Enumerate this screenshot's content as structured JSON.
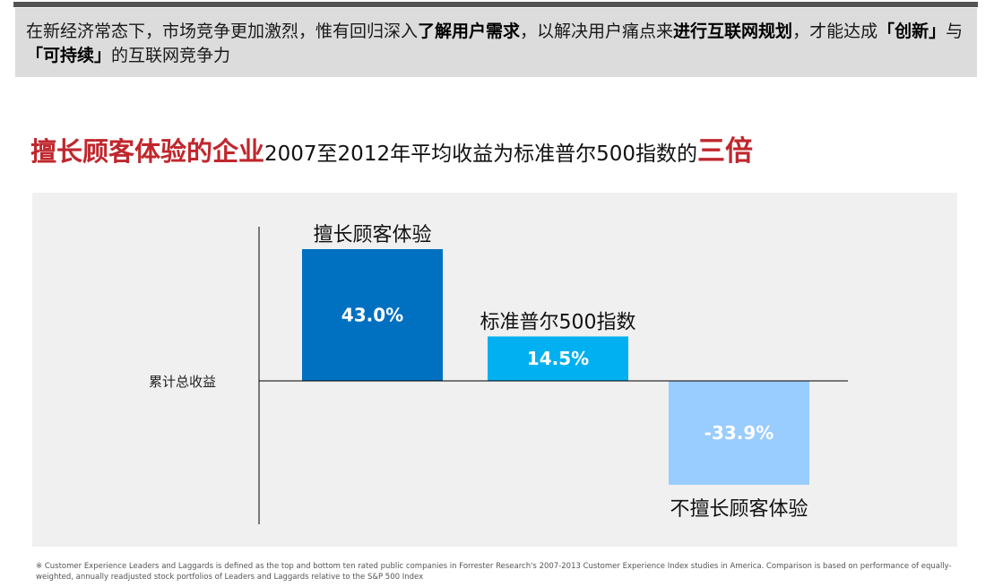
{
  "banner": {
    "seg1": "在新经济常态下，市场竞争更加激烈，惟有回归深入",
    "bold1": "了解用户需求",
    "seg2": "，以解决用户痛点来",
    "bold2": "进行互联网规划",
    "seg3": "，才能达成",
    "bold3": "「创新」",
    "seg4": "与",
    "bold4": "「可持续」",
    "seg5": "的互联网竞争力"
  },
  "headline": {
    "part1": "擅长顾客体验的企业",
    "part2": "2007至2012年平均收益为标准普尔500指数的",
    "part3": "三倍"
  },
  "chart_data": {
    "type": "bar",
    "ylabel": "累计总收益",
    "categories": [
      "擅长顾客体验",
      "标准普尔500指数",
      "不擅长顾客体验"
    ],
    "values": [
      43.0,
      14.5,
      -33.9
    ],
    "value_labels": [
      "43.0%",
      "14.5%",
      "-33.9%"
    ],
    "colors": [
      "#0070c0",
      "#00b0f0",
      "#99ccff"
    ],
    "ylim": [
      -43,
      50
    ],
    "grid": false,
    "legend": "none"
  },
  "footnote": "※ Customer Experience Leaders and Laggards is defined as the top and bottom ten rated public companies in Forrester Research's 2007-2013 Customer Experience Index studies in America. Comparison is based on performance of equally-weighted, annually readjusted stock portfolios of Leaders and Laggards relative to the S&P 500 Index"
}
